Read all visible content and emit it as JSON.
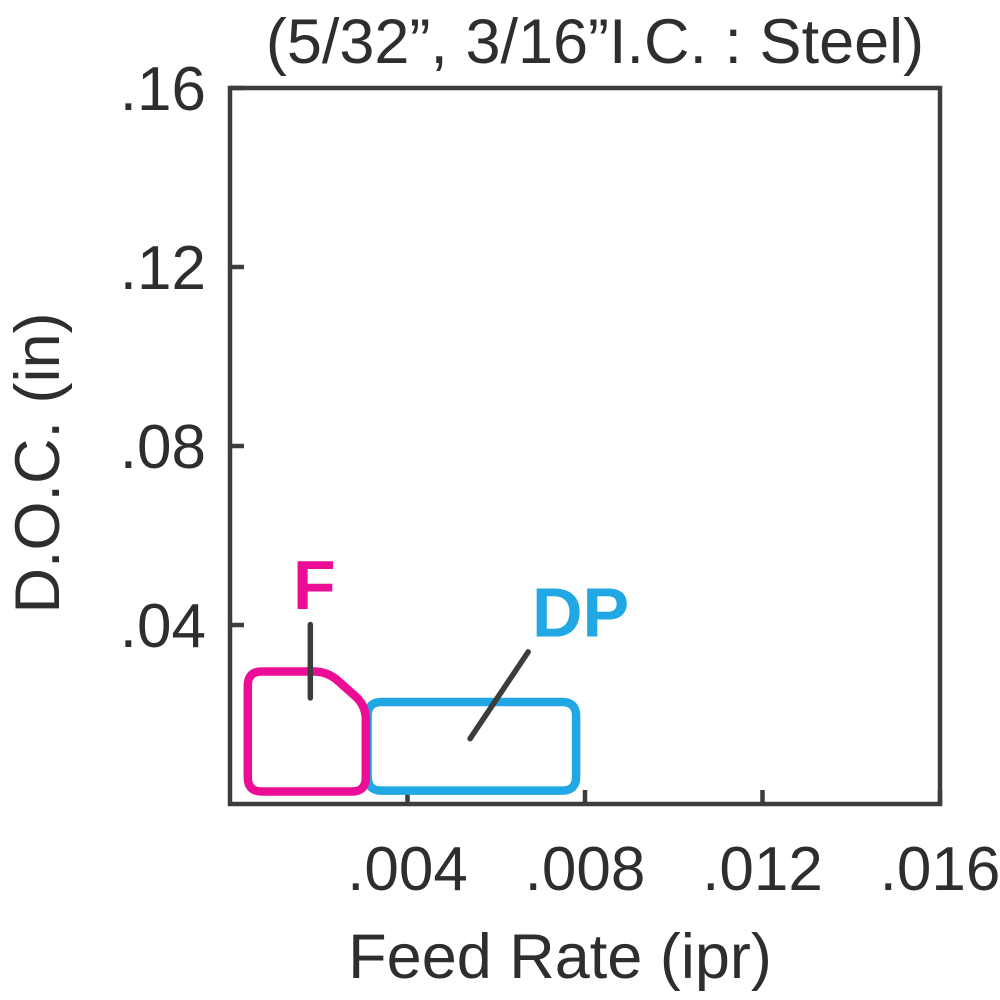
{
  "page": {
    "background": "#ffffff"
  },
  "chart_data": {
    "type": "area",
    "subtype": "operating-range-regions",
    "title": "(5/32”, 3/16”I.C. : Steel)",
    "xlabel": "Feed Rate (ipr)",
    "ylabel": "D.O.C. (in)",
    "xlim": [
      0,
      0.016
    ],
    "ylim": [
      0,
      0.16
    ],
    "grid": false,
    "legend": "none",
    "axis_color": "#3d3d3d",
    "text_color": "#2e2e2e",
    "leader_color": "#3c3c3c",
    "xticks": [
      {
        "value": 0.004,
        "label": ".004"
      },
      {
        "value": 0.008,
        "label": ".008"
      },
      {
        "value": 0.012,
        "label": ".012"
      },
      {
        "value": 0.016,
        "label": ".016"
      }
    ],
    "yticks": [
      {
        "value": 0.04,
        "label": ".04"
      },
      {
        "value": 0.08,
        "label": ".08"
      },
      {
        "value": 0.12,
        "label": ".12"
      },
      {
        "value": 0.16,
        "label": ".16"
      }
    ],
    "regions": [
      {
        "name": "DP",
        "label": "DP",
        "color": "#21A7E3",
        "corner_radius": 14,
        "polygon": [
          [
            0.0031,
            0.003
          ],
          [
            0.0031,
            0.0228
          ],
          [
            0.0078,
            0.0228
          ],
          [
            0.0078,
            0.003
          ]
        ],
        "label_at": [
          0.0079,
          0.043
        ],
        "leader": [
          [
            0.00672,
            0.034
          ],
          [
            0.00541,
            0.0146
          ]
        ]
      },
      {
        "name": "F",
        "label": "F",
        "color": "#EB0D96",
        "corner_radius": 14,
        "polygon": [
          [
            0.0004,
            0.0028
          ],
          [
            0.0004,
            0.0296
          ],
          [
            0.0022,
            0.0296
          ],
          [
            0.00306,
            0.022
          ],
          [
            0.00306,
            0.0028
          ]
        ],
        "label_at": [
          0.0019,
          0.0492
        ],
        "leader": [
          [
            0.00181,
            0.0401
          ],
          [
            0.00181,
            0.0237
          ]
        ]
      }
    ]
  }
}
